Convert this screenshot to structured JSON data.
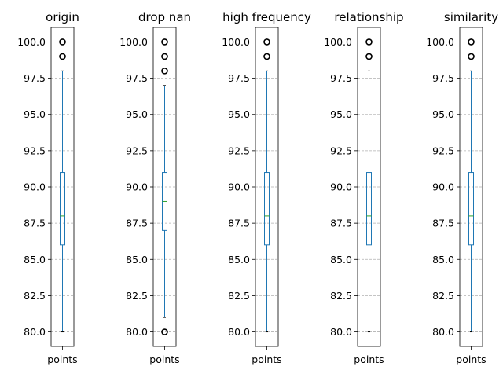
{
  "chart_data": [
    {
      "type": "box",
      "title": "origin",
      "categories": [
        "points"
      ],
      "box": {
        "min": 80,
        "q1": 86,
        "median": 88,
        "q3": 91,
        "max": 98
      },
      "outliers": [
        99,
        100
      ],
      "ylim": [
        79,
        101
      ],
      "yticks": [
        "80.0",
        "82.5",
        "85.0",
        "87.5",
        "90.0",
        "92.5",
        "95.0",
        "97.5",
        "100.0"
      ],
      "grid": "y-dashed"
    },
    {
      "type": "box",
      "title": "drop nan",
      "categories": [
        "points"
      ],
      "box": {
        "min": 81,
        "q1": 87,
        "median": 89,
        "q3": 91,
        "max": 97
      },
      "outliers": [
        80,
        98,
        99,
        100
      ],
      "ylim": [
        79,
        101
      ],
      "yticks": [
        "80.0",
        "82.5",
        "85.0",
        "87.5",
        "90.0",
        "92.5",
        "95.0",
        "97.5",
        "100.0"
      ],
      "grid": "y-dashed"
    },
    {
      "type": "box",
      "title": "high frequency",
      "categories": [
        "points"
      ],
      "box": {
        "min": 80,
        "q1": 86,
        "median": 88,
        "q3": 91,
        "max": 98
      },
      "outliers": [
        99,
        100
      ],
      "ylim": [
        79,
        101
      ],
      "yticks": [
        "80.0",
        "82.5",
        "85.0",
        "87.5",
        "90.0",
        "92.5",
        "95.0",
        "97.5",
        "100.0"
      ],
      "grid": "y-dashed"
    },
    {
      "type": "box",
      "title": "relationship",
      "categories": [
        "points"
      ],
      "box": {
        "min": 80,
        "q1": 86,
        "median": 88,
        "q3": 91,
        "max": 98
      },
      "outliers": [
        99,
        100
      ],
      "ylim": [
        79,
        101
      ],
      "yticks": [
        "80.0",
        "82.5",
        "85.0",
        "87.5",
        "90.0",
        "92.5",
        "95.0",
        "97.5",
        "100.0"
      ],
      "grid": "y-dashed"
    },
    {
      "type": "box",
      "title": "similarity",
      "categories": [
        "points"
      ],
      "box": {
        "min": 80,
        "q1": 86,
        "median": 88,
        "q3": 91,
        "max": 98
      },
      "outliers": [
        99,
        100
      ],
      "ylim": [
        79,
        101
      ],
      "yticks": [
        "80.0",
        "82.5",
        "85.0",
        "87.5",
        "90.0",
        "92.5",
        "95.0",
        "97.5",
        "100.0"
      ],
      "grid": "y-dashed"
    }
  ],
  "colors": {
    "box": "#1f77b4",
    "median": "#2ca02c",
    "grid": "#b0b0b0",
    "outlier_edge": "#000000",
    "axes": "#000000"
  }
}
